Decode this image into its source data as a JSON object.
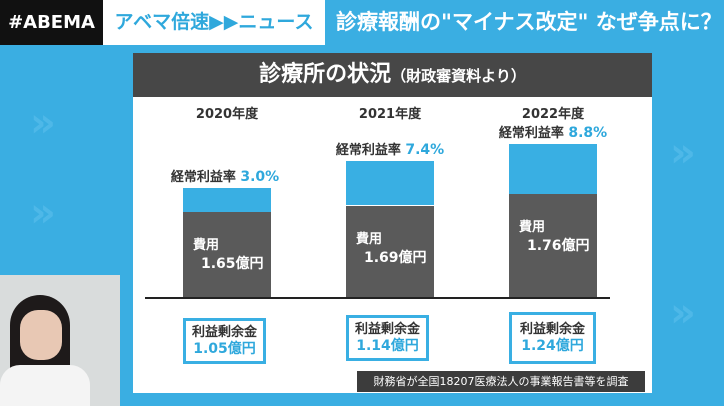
{
  "header": {
    "logo": "#ABEMA",
    "program": "アベマ倍速▶▶ニュース",
    "headline": "診療報酬の\"マイナス改定\" なぜ争点に？"
  },
  "panel": {
    "title": "診療所の状況",
    "subtitle": "（財政審資料より）",
    "source_note": "財務省が全国18207医療法人の事業報告書等を調査"
  },
  "colors": {
    "background": "#3aaee2",
    "accent": "#39afe3",
    "cost_bar": "#5a5a5a",
    "title_bar": "#474747"
  },
  "chart_data": {
    "type": "bar",
    "stacked": true,
    "categories": [
      "2020年度",
      "2021年度",
      "2022年度"
    ],
    "rate_label": "経常利益率",
    "rates": [
      "3.0%",
      "7.4%",
      "8.8%"
    ],
    "rate_values": [
      3.0,
      7.4,
      8.8
    ],
    "cost_label": "費用",
    "costs": [
      "1.65億円",
      "1.69億円",
      "1.76億円"
    ],
    "cost_values": [
      1.65,
      1.69,
      1.76
    ],
    "surplus_label": "利益剰余金",
    "surpluses": [
      "1.05億円",
      "1.14億円",
      "1.24億円"
    ],
    "surplus_values": [
      1.05,
      1.14,
      1.24
    ]
  }
}
